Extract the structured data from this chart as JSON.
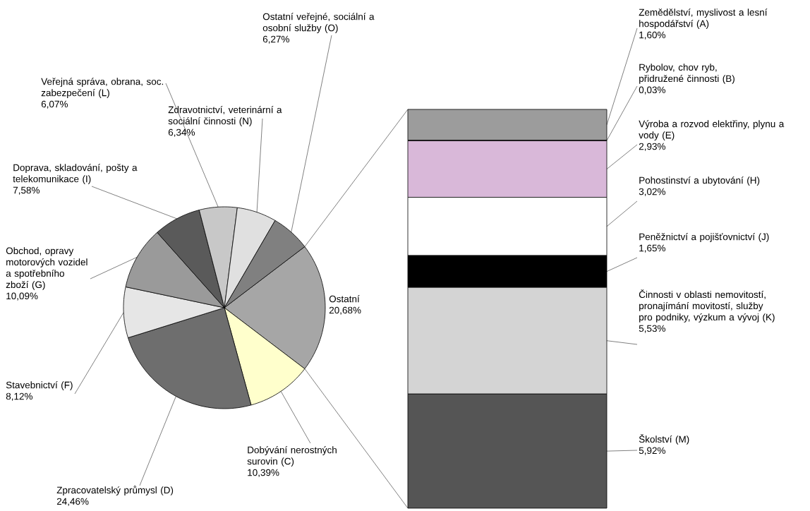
{
  "chart_data": [
    {
      "type": "pie",
      "categories": [
        "Ostatní",
        "Dobývání nerostných surovin (C)",
        "Zpracovatelský průmysl (D)",
        "Stavebnictví (F)",
        "Obchod, opravy motorových vozidel a spotřebního zboží (G)",
        "Doprava, skladování, pošty a telekomunikace (I)",
        "Veřejná správa, obrana, soc. zabezpečení (L)",
        "Zdravotnictví, veterinární a sociální činnosti (N)",
        "Ostatní veřejné, sociální a osobní služby (O)"
      ],
      "values": [
        20.68,
        10.39,
        24.46,
        8.12,
        10.09,
        7.58,
        6.07,
        6.34,
        6.27
      ],
      "value_labels": [
        "20,68%",
        "10,39%",
        "24,46%",
        "8,12%",
        "10,09%",
        "7,58%",
        "6,07%",
        "6,34%",
        "6,27%"
      ],
      "colors": [
        "#a6a6a6",
        "#ffffcc",
        "#6e6e6e",
        "#e6e6e6",
        "#9a9a9a",
        "#5a5a5a",
        "#c8c8c8",
        "#e0e0e0",
        "#808080"
      ]
    },
    {
      "type": "bar",
      "stacked": true,
      "categories": [
        null
      ],
      "ylim": [
        0,
        20.68
      ],
      "tick_labels": false,
      "series": [
        {
          "name": "Školství (M)",
          "color": "#555555",
          "values": [
            5.92
          ],
          "value_labels": [
            "5,92%"
          ]
        },
        {
          "name": "Činnosti v oblasti nemovitostí, pronajímání movitostí, služby pro podniky, výzkum a vývoj (K)",
          "color": "#d4d4d4",
          "values": [
            5.53
          ],
          "value_labels": [
            "5,53%"
          ]
        },
        {
          "name": "Peněžnictví a pojišťovnictví (J)",
          "color": "#000000",
          "values": [
            1.65
          ],
          "value_labels": [
            "1,65%"
          ]
        },
        {
          "name": "Pohostinství a ubytování (H)",
          "color": "#ffffff",
          "values": [
            3.02
          ],
          "value_labels": [
            "3,02%"
          ]
        },
        {
          "name": "Výroba a rozvod elektřiny, plynu a vody (E)",
          "color": "#d9b8d9",
          "values": [
            2.93
          ],
          "value_labels": [
            "2,93%"
          ]
        },
        {
          "name": "Rybolov, chov ryb, přidružené činnosti (B)",
          "color": "#808080",
          "values": [
            0.03
          ],
          "value_labels": [
            "0,03%"
          ]
        },
        {
          "name": "Zemědělství, myslivost a lesní hospodářství (A)",
          "color": "#9c9c9c",
          "values": [
            1.6
          ],
          "value_labels": [
            "1,60%"
          ]
        }
      ]
    }
  ]
}
